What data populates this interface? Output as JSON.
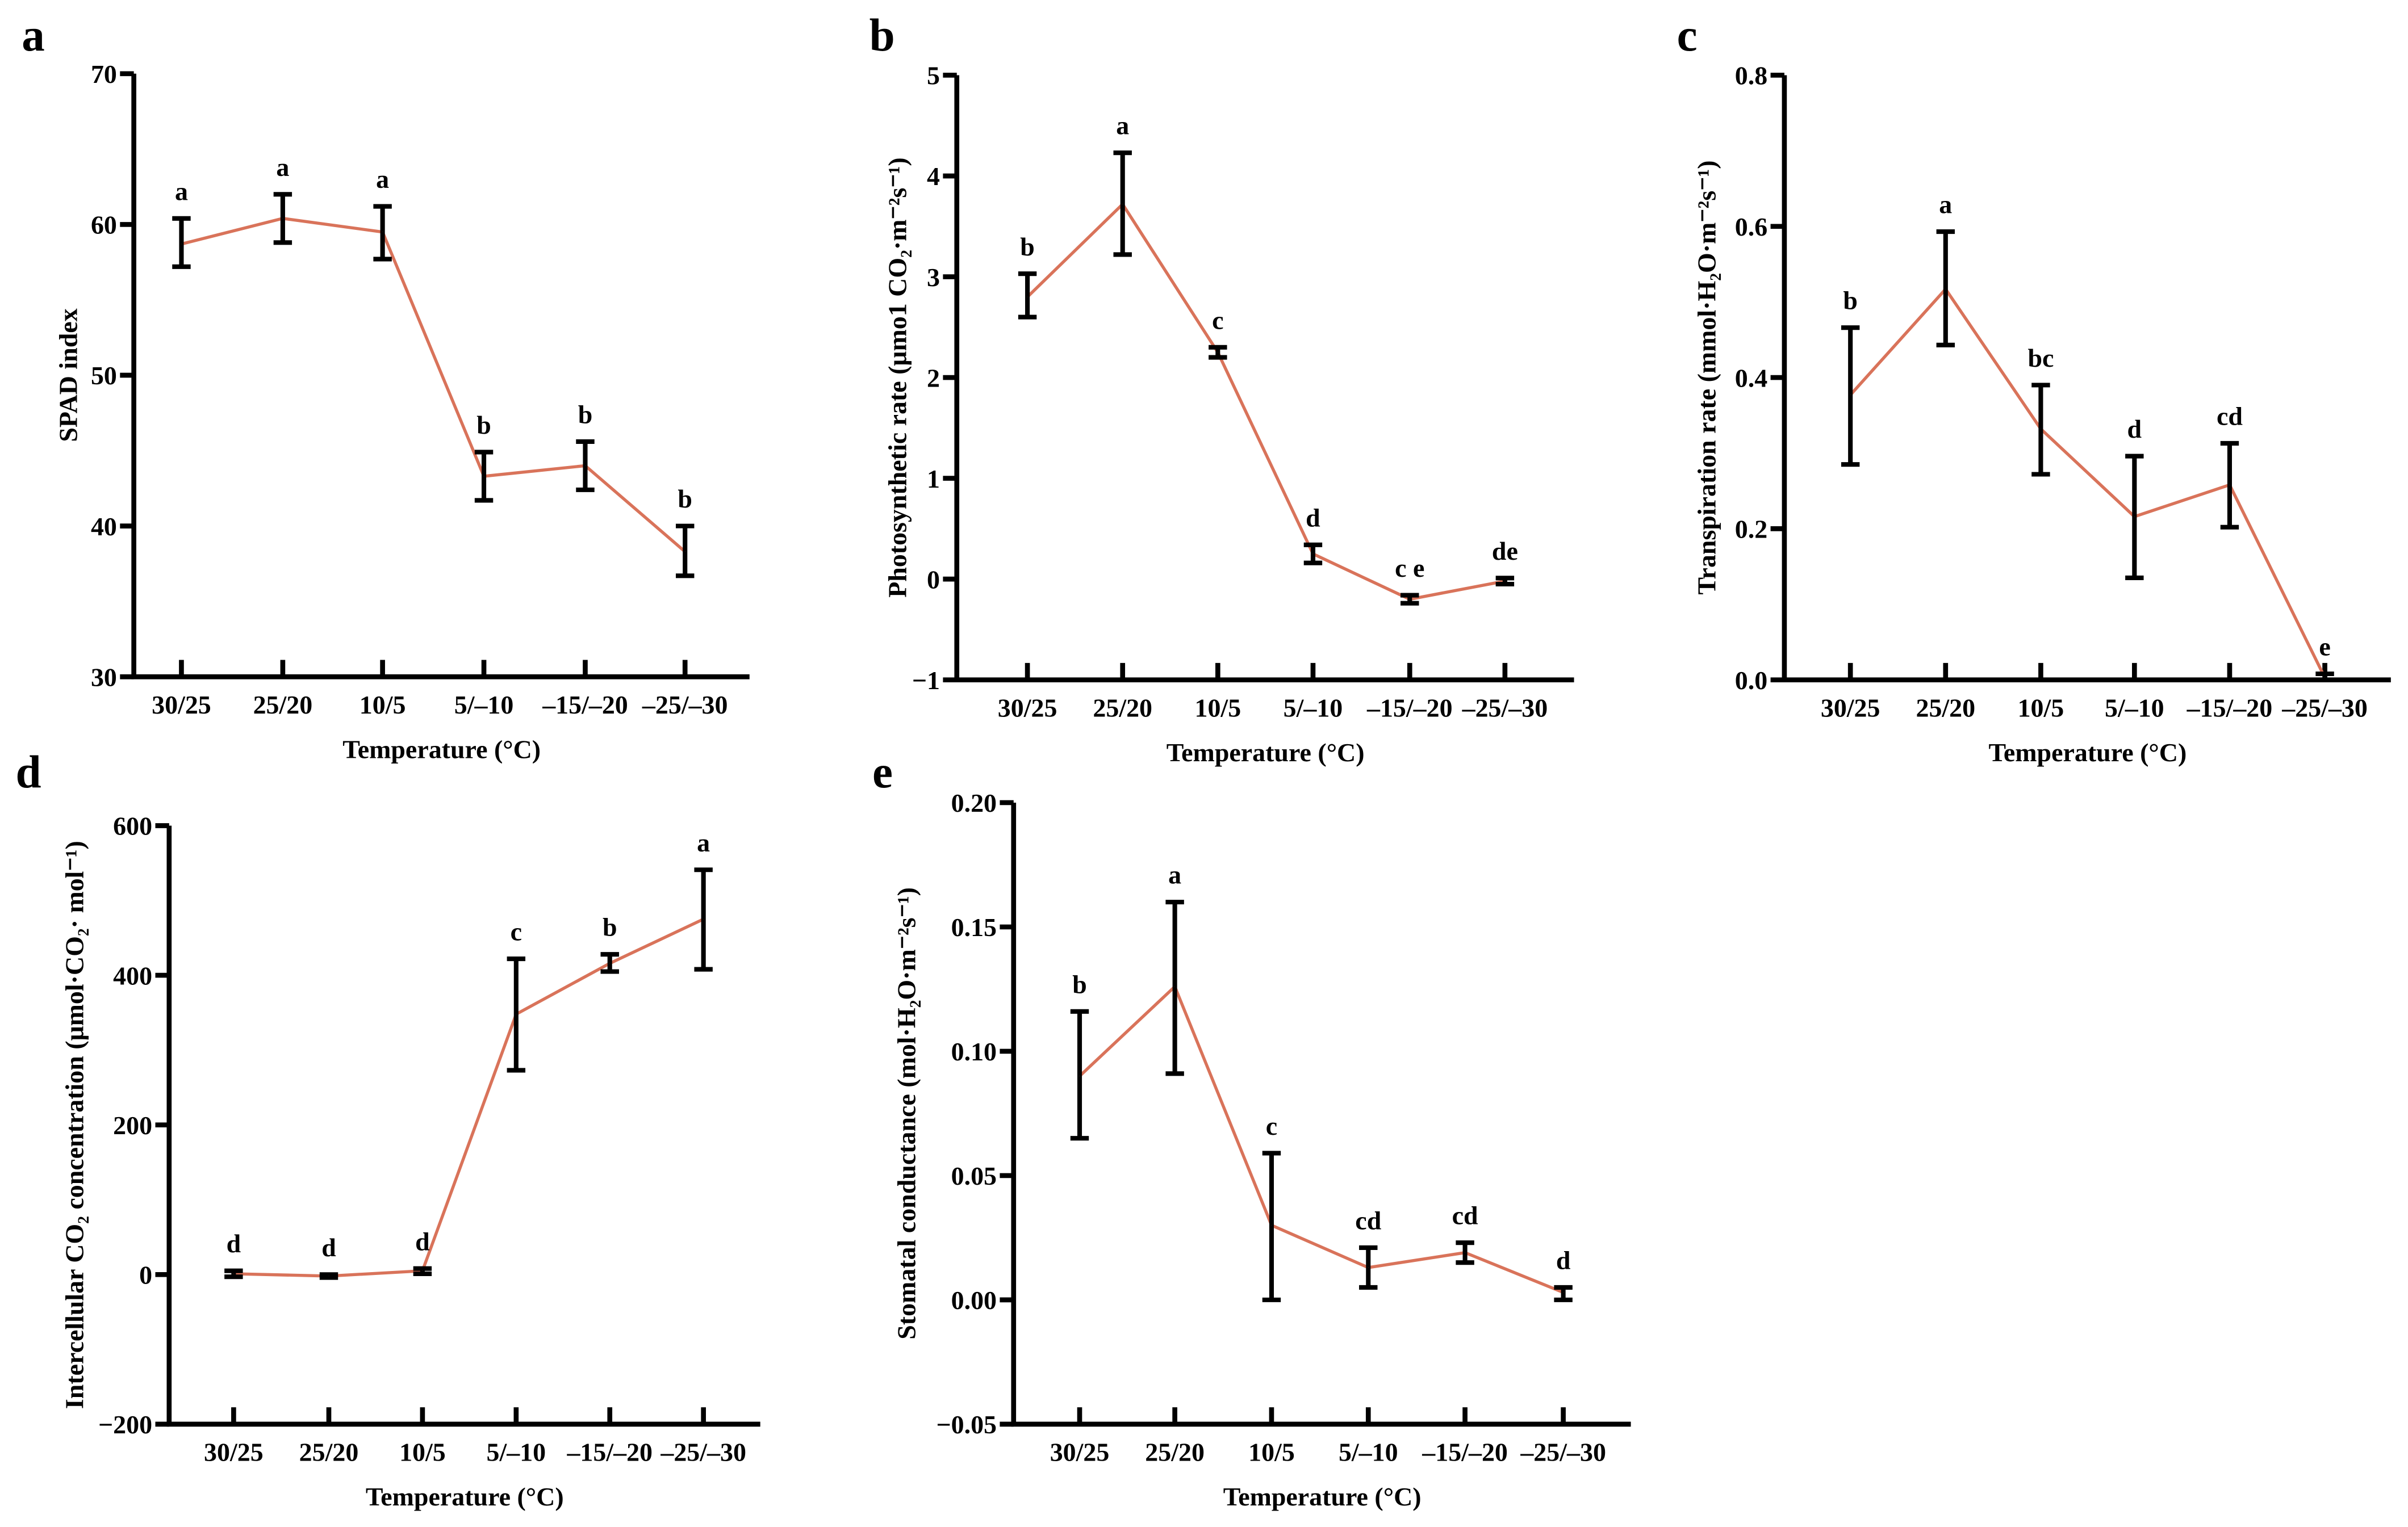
{
  "line_color": "#d9735a",
  "chart_data": [
    {
      "panel": "a",
      "type": "line",
      "xlabel": "Temperature (°C)",
      "ylabel": "SPAD index",
      "categories": [
        "30/25",
        "25/20",
        "10/5",
        "5/–10",
        "–15/–20",
        "–25/–30"
      ],
      "ylim": [
        30,
        70
      ],
      "yticks": [
        30,
        40,
        50,
        60,
        70
      ],
      "ytick_labels": [
        "30",
        "40",
        "50",
        "60",
        "70"
      ],
      "values": [
        58.7,
        60.4,
        59.5,
        43.3,
        44.0,
        38.3
      ],
      "err_low": [
        57.2,
        58.8,
        57.7,
        41.7,
        42.4,
        36.7
      ],
      "err_high": [
        60.4,
        62.0,
        61.2,
        44.9,
        45.6,
        40.0
      ],
      "letters": [
        "a",
        "a",
        "a",
        "b",
        "b",
        "b"
      ]
    },
    {
      "panel": "b",
      "type": "line",
      "xlabel": "Temperature (°C)",
      "ylabel": "Photosynthetic rate (μmo1 CO₂·m⁻²s⁻¹)",
      "categories": [
        "30/25",
        "25/20",
        "10/5",
        "5/–10",
        "–15/–20",
        "–25/–30"
      ],
      "ylim": [
        -1,
        5
      ],
      "yticks": [
        -1,
        0,
        1,
        2,
        3,
        4,
        5
      ],
      "ytick_labels": [
        "−1",
        "0",
        "1",
        "2",
        "3",
        "4",
        "5"
      ],
      "values": [
        2.8,
        3.72,
        2.25,
        0.25,
        -0.2,
        -0.02
      ],
      "err_low": [
        2.6,
        3.22,
        2.2,
        0.16,
        -0.24,
        -0.05
      ],
      "err_high": [
        3.03,
        4.23,
        2.3,
        0.34,
        -0.16,
        0.01
      ],
      "letters": [
        "b",
        "a",
        "c",
        "d",
        "c e",
        "de"
      ]
    },
    {
      "panel": "c",
      "type": "line",
      "xlabel": "Temperature (°C)",
      "ylabel": "Transpiration rate (mmol·H₂O·m⁻²s⁻¹)",
      "categories": [
        "30/25",
        "25/20",
        "10/5",
        "5/–10",
        "–15/–20",
        "–25/–30"
      ],
      "ylim": [
        0,
        0.8
      ],
      "yticks": [
        0,
        0.2,
        0.4,
        0.6,
        0.8
      ],
      "ytick_labels": [
        "0.0",
        "0.2",
        "0.4",
        "0.6",
        "0.8"
      ],
      "values": [
        0.377,
        0.517,
        0.332,
        0.216,
        0.258,
        0.003
      ],
      "err_low": [
        0.285,
        0.443,
        0.272,
        0.135,
        0.202,
        0.0
      ],
      "err_high": [
        0.466,
        0.593,
        0.39,
        0.296,
        0.313,
        0.008
      ],
      "letters": [
        "b",
        "a",
        "bc",
        "d",
        "cd",
        "e"
      ]
    },
    {
      "panel": "d",
      "type": "line",
      "xlabel": "Temperature (°C)",
      "ylabel": "Intercellular CO₂ concentration (μmol·CO₂· mol⁻¹)",
      "categories": [
        "30/25",
        "25/20",
        "10/5",
        "5/–10",
        "–15/–20",
        "–25/–30"
      ],
      "ylim": [
        -200,
        600
      ],
      "yticks": [
        -200,
        0,
        200,
        400,
        600
      ],
      "ytick_labels": [
        "−200",
        "0",
        "200",
        "400",
        "600"
      ],
      "values": [
        1,
        -2,
        5,
        348,
        416,
        475
      ],
      "err_low": [
        -3,
        -4,
        1,
        273,
        405,
        408
      ],
      "err_high": [
        5,
        0,
        8,
        422,
        428,
        541
      ],
      "letters": [
        "d",
        "d",
        "d",
        "c",
        "b",
        "a"
      ]
    },
    {
      "panel": "e",
      "type": "line",
      "xlabel": "Temperature (°C)",
      "ylabel": "Stomatal conductance (mol·H₂O·m⁻²s⁻¹)",
      "categories": [
        "30/25",
        "25/20",
        "10/5",
        "5/–10",
        "–15/–20",
        "–25/–30"
      ],
      "ylim": [
        -0.05,
        0.2
      ],
      "yticks": [
        -0.05,
        0,
        0.05,
        0.1,
        0.15,
        0.2
      ],
      "ytick_labels": [
        "−0.05",
        "0.00",
        "0.05",
        "0.10",
        "0.15",
        "0.20"
      ],
      "values": [
        0.09,
        0.126,
        0.03,
        0.013,
        0.019,
        0.003
      ],
      "err_low": [
        0.065,
        0.091,
        0.0,
        0.005,
        0.015,
        0.0
      ],
      "err_high": [
        0.116,
        0.16,
        0.059,
        0.021,
        0.023,
        0.005
      ],
      "letters": [
        "b",
        "a",
        "c",
        "cd",
        "cd",
        "d"
      ]
    }
  ]
}
